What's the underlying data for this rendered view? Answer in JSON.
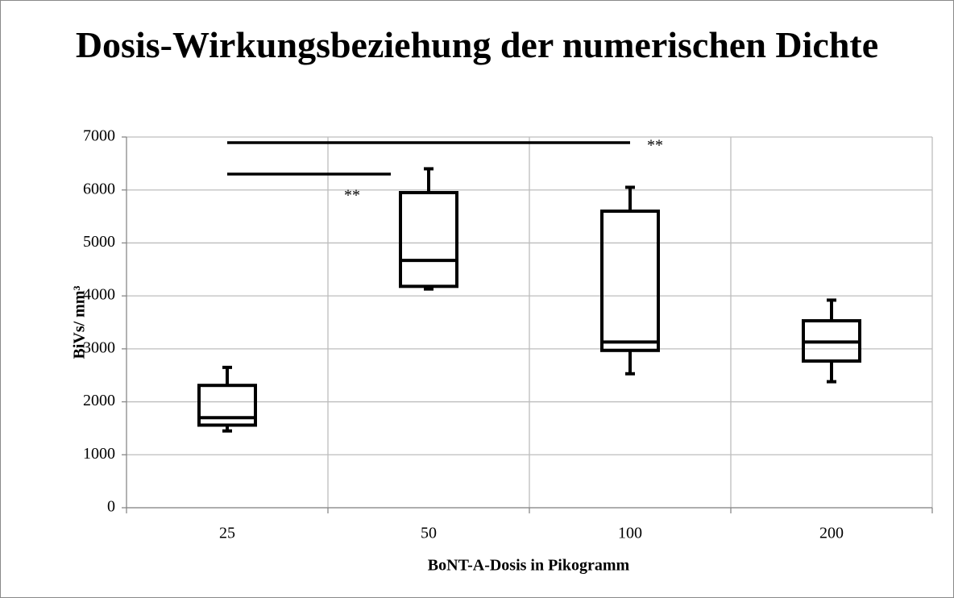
{
  "chart_data": {
    "type": "box",
    "title": "Dosis-Wirkungsbeziehung der numerischen Dichte",
    "x_label": "BoNT-A-Dosis in Pikogramm",
    "y_label": "BiVs/ mm³",
    "categories": [
      "25",
      "50",
      "100",
      "200"
    ],
    "boxes": [
      {
        "min": 1450,
        "q1": 1560,
        "median": 1700,
        "q3": 2310,
        "max": 2650
      },
      {
        "min": 4130,
        "q1": 4180,
        "median": 4670,
        "q3": 5950,
        "max": 6400
      },
      {
        "min": 2530,
        "q1": 2970,
        "median": 3130,
        "q3": 5600,
        "max": 6050
      },
      {
        "min": 2380,
        "q1": 2770,
        "median": 3130,
        "q3": 3530,
        "max": 3920
      }
    ],
    "color": "#000000",
    "ylim": [
      0,
      7000
    ],
    "yticks": [
      0,
      1000,
      2000,
      3000,
      4000,
      5000,
      6000,
      7000
    ],
    "grid": true,
    "annotations": [
      "**",
      "**"
    ]
  }
}
